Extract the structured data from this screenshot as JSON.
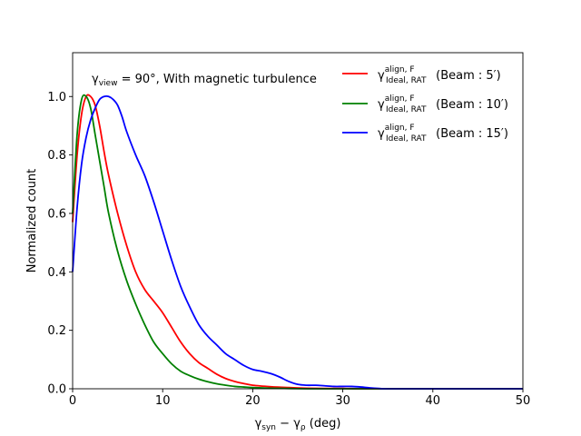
{
  "chart_data": {
    "type": "line",
    "title": "",
    "annotation": {
      "pre": "γ",
      "sub": "view",
      "post": " = 90°, With magnetic turbulence"
    },
    "xlabel": {
      "a": "γ",
      "a_sub": "syn",
      "mid": " − ",
      "b": "γ",
      "b_sub": "ρ",
      "post": " (deg)"
    },
    "ylabel": "Normalized count",
    "xlim": [
      0,
      50
    ],
    "ylim": [
      0,
      1.15
    ],
    "xticks": [
      0,
      10,
      20,
      30,
      40,
      50
    ],
    "yticks": [
      0.0,
      0.2,
      0.4,
      0.6,
      0.8,
      1.0
    ],
    "xtick_labels": [
      "0",
      "10",
      "20",
      "30",
      "40",
      "50"
    ],
    "ytick_labels": [
      "0.0",
      "0.2",
      "0.4",
      "0.6",
      "0.8",
      "1.0"
    ],
    "legend_position": "top-right",
    "series": [
      {
        "name": "γ_Ideal,RAT^align,F (Beam: 5′)",
        "legend": {
          "sym": "γ",
          "sup": "align, F",
          "sub": "Ideal, RAT",
          "text": " (Beam : 5′)"
        },
        "color": "#ff0000",
        "x": [
          0,
          0.5,
          1,
          1.5,
          2,
          2.5,
          3,
          3.5,
          4,
          5,
          6,
          7,
          8,
          9,
          10,
          11,
          12,
          13,
          14,
          15,
          16,
          17,
          18,
          19,
          20,
          22,
          24,
          26,
          28,
          30,
          32,
          35,
          40,
          45,
          50
        ],
        "values": [
          0.57,
          0.8,
          0.94,
          1.0,
          1.0,
          0.97,
          0.9,
          0.81,
          0.73,
          0.6,
          0.49,
          0.4,
          0.34,
          0.3,
          0.26,
          0.21,
          0.16,
          0.12,
          0.09,
          0.07,
          0.05,
          0.035,
          0.025,
          0.018,
          0.012,
          0.007,
          0.004,
          0.002,
          0.001,
          0.001,
          0,
          0,
          0,
          0,
          0
        ]
      },
      {
        "name": "γ_Ideal,RAT^align,F (Beam: 10′)",
        "legend": {
          "sym": "γ",
          "sup": "align, F",
          "sub": "Ideal, RAT",
          "text": " (Beam : 10′)"
        },
        "color": "#008000",
        "x": [
          0,
          0.5,
          1,
          1.5,
          2,
          2.5,
          3,
          3.5,
          4,
          5,
          6,
          7,
          8,
          9,
          10,
          11,
          12,
          13,
          14,
          15,
          16,
          17,
          18,
          19,
          20,
          22,
          24,
          26,
          28,
          30,
          35,
          40,
          45,
          50
        ],
        "values": [
          0.6,
          0.87,
          0.99,
          1.0,
          0.96,
          0.87,
          0.78,
          0.69,
          0.6,
          0.47,
          0.37,
          0.29,
          0.22,
          0.16,
          0.12,
          0.085,
          0.06,
          0.045,
          0.033,
          0.024,
          0.017,
          0.012,
          0.008,
          0.006,
          0.004,
          0.002,
          0.001,
          0,
          0,
          0,
          0,
          0,
          0,
          0
        ]
      },
      {
        "name": "γ_Ideal,RAT^align,F (Beam: 15′)",
        "legend": {
          "sym": "γ",
          "sup": "align, F",
          "sub": "Ideal, RAT",
          "text": " (Beam : 15′)"
        },
        "color": "#0000ff",
        "x": [
          0,
          0.5,
          1,
          1.5,
          2,
          2.5,
          3,
          3.5,
          4,
          4.5,
          5,
          5.5,
          6,
          7,
          8,
          9,
          10,
          11,
          12,
          13,
          14,
          15,
          16,
          17,
          18,
          19,
          20,
          21,
          22,
          23,
          24,
          25,
          26,
          27,
          28,
          29,
          30,
          31,
          32,
          33,
          34,
          35,
          40,
          45,
          50
        ],
        "values": [
          0.4,
          0.62,
          0.77,
          0.86,
          0.92,
          0.96,
          0.99,
          1.0,
          1.0,
          0.99,
          0.97,
          0.93,
          0.88,
          0.8,
          0.73,
          0.64,
          0.54,
          0.44,
          0.35,
          0.28,
          0.22,
          0.18,
          0.15,
          0.12,
          0.1,
          0.08,
          0.066,
          0.06,
          0.052,
          0.04,
          0.025,
          0.015,
          0.012,
          0.012,
          0.01,
          0.008,
          0.008,
          0.008,
          0.006,
          0.003,
          0.001,
          0,
          0,
          0,
          0
        ]
      }
    ]
  }
}
